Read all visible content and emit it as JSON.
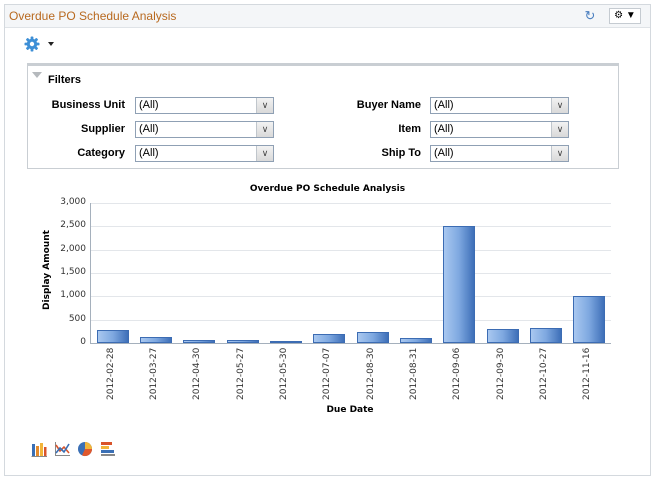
{
  "panel": {
    "title": "Overdue PO Schedule Analysis",
    "refresh_icon": "refresh-icon",
    "options_icon": "gear-dropdown-icon"
  },
  "toolbar": {
    "gear_icon": "gear-icon",
    "caret_icon": "caret-down-icon"
  },
  "filters": {
    "label": "Filters",
    "fields": [
      {
        "label": "Business Unit",
        "value": "(All)"
      },
      {
        "label": "Supplier",
        "value": "(All)"
      },
      {
        "label": "Category",
        "value": "(All)"
      },
      {
        "label": "Buyer Name",
        "value": "(All)"
      },
      {
        "label": "Item",
        "value": "(All)"
      },
      {
        "label": "Ship To",
        "value": "(All)"
      }
    ],
    "dropdown_arrow": "⌄"
  },
  "chart_data": {
    "type": "bar",
    "title": "Overdue PO Schedule Analysis",
    "xlabel": "Due Date",
    "ylabel": "Display Amount",
    "ylim": [
      0,
      3000
    ],
    "yticks": [
      "0",
      "500",
      "1,000",
      "1,500",
      "2,000",
      "2,500",
      "3,000"
    ],
    "grid": true,
    "legend": "none",
    "categories": [
      "2012-02-28",
      "2012-03-27",
      "2012-04-30",
      "2012-05-27",
      "2012-05-30",
      "2012-07-07",
      "2012-08-30",
      "2012-08-31",
      "2012-09-06",
      "2012-09-30",
      "2012-10-27",
      "2012-11-16"
    ],
    "values": [
      280,
      130,
      60,
      60,
      20,
      190,
      230,
      100,
      2500,
      290,
      330,
      1000
    ],
    "bar_color": "#5b8bd0"
  },
  "chart_types": [
    {
      "name": "bar-chart-icon"
    },
    {
      "name": "line-chart-icon"
    },
    {
      "name": "pie-chart-icon"
    },
    {
      "name": "horizontal-bar-chart-icon"
    }
  ]
}
